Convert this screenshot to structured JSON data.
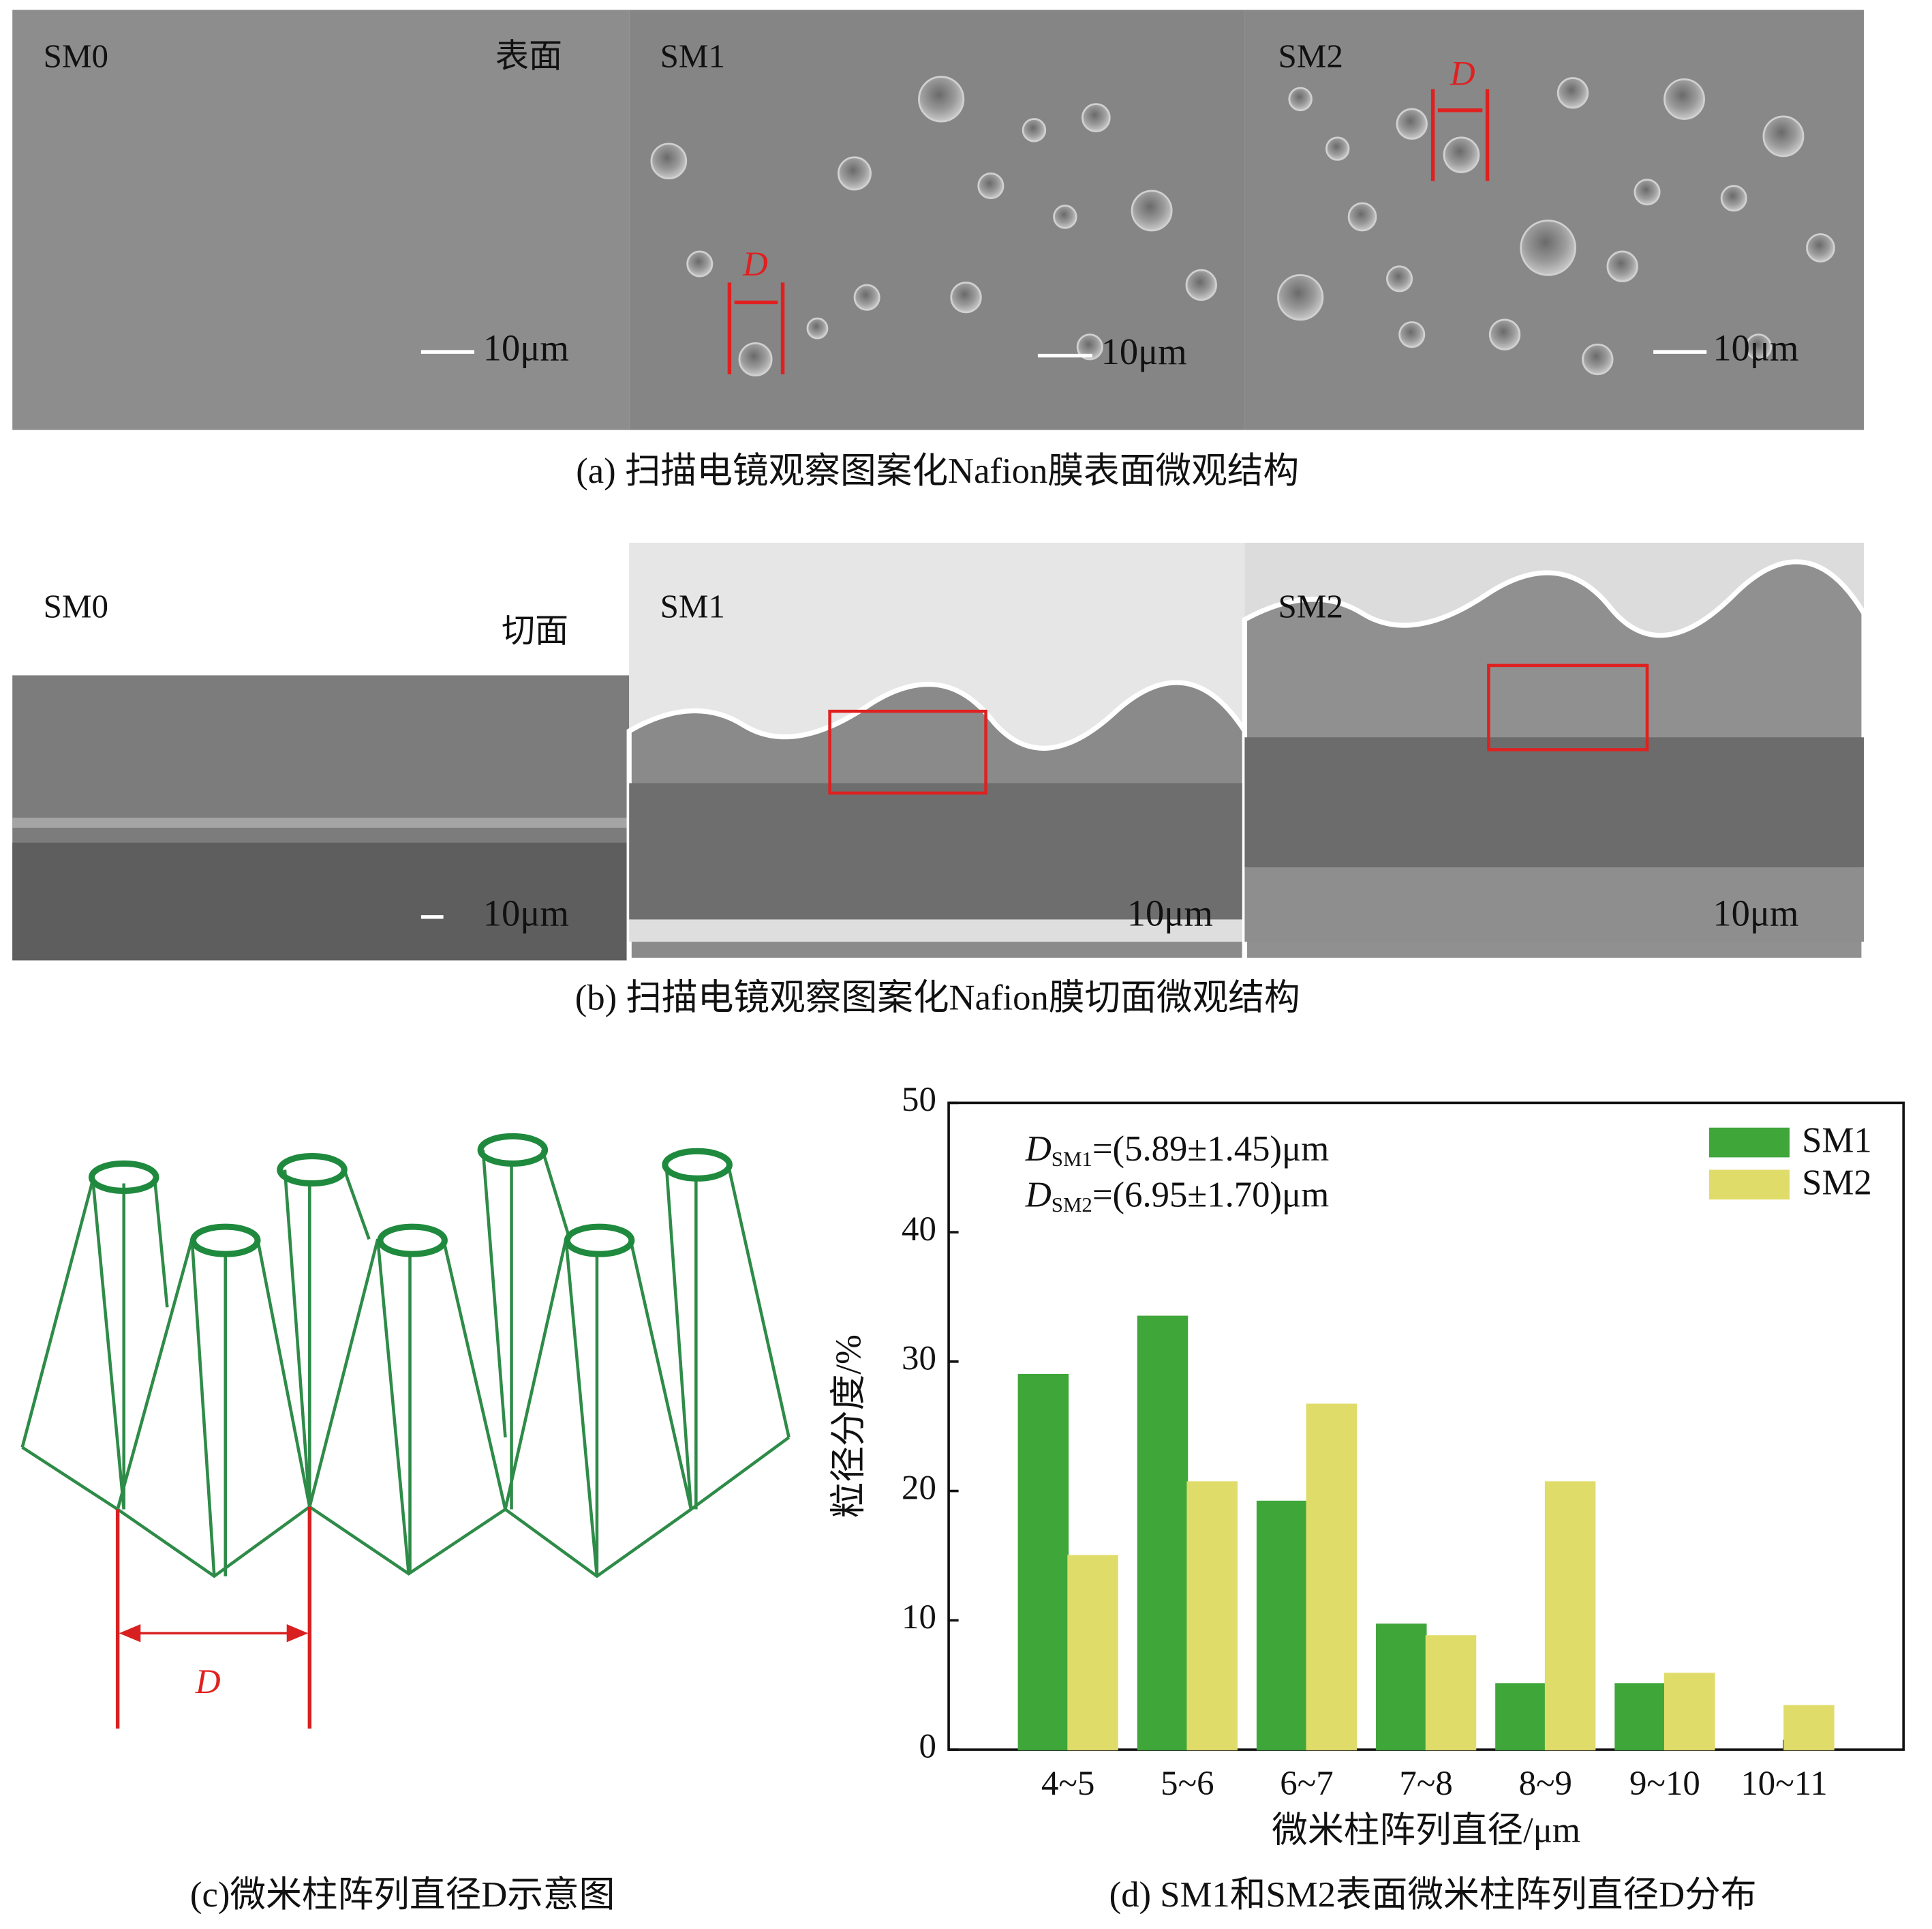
{
  "panel_a": {
    "images": [
      {
        "label": "SM0",
        "tag": "表面",
        "scale": "10μm"
      },
      {
        "label": "SM1",
        "marker": "D",
        "scale": "10μm"
      },
      {
        "label": "SM2",
        "marker": "D",
        "scale": "10μm"
      }
    ],
    "caption": "(a) 扫描电镜观察图案化Nafion膜表面微观结构"
  },
  "panel_b": {
    "images": [
      {
        "label": "SM0",
        "tag": "切面",
        "scale": "10μm"
      },
      {
        "label": "SM1",
        "scale": "10μm"
      },
      {
        "label": "SM2",
        "scale": "10μm"
      }
    ],
    "caption": "(b) 扫描电镜观察图案化Nafion膜切面微观结构"
  },
  "panel_c": {
    "marker": "D",
    "caption": "(c)微米柱阵列直径D示意图"
  },
  "chart_data": {
    "type": "bar",
    "categories": [
      "4~5",
      "5~6",
      "6~7",
      "7~8",
      "8~9",
      "9~10",
      "10~11"
    ],
    "series": [
      {
        "name": "SM1",
        "color": "#3fa63a",
        "values": [
          29,
          33.5,
          19.2,
          9.7,
          5.1,
          5.1,
          0
        ]
      },
      {
        "name": "SM2",
        "color": "#e0dc6a",
        "values": [
          15,
          20.7,
          26.7,
          8.8,
          20.7,
          5.9,
          3.4
        ]
      }
    ],
    "ylim": [
      0,
      50
    ],
    "yticks": [
      0,
      10,
      20,
      30,
      40,
      50
    ],
    "xlabel": "微米柱阵列直径/μm",
    "ylabel": "粒径分度/%",
    "legend": "upper right",
    "annotations": [
      {
        "symbol": "D",
        "subscript": "SM1",
        "text": "=(5.89±1.45)μm"
      },
      {
        "symbol": "D",
        "subscript": "SM2",
        "text": "=(6.95±1.70)μm"
      }
    ],
    "caption": "(d) SM1和SM2表面微米柱阵列直径D分布"
  }
}
